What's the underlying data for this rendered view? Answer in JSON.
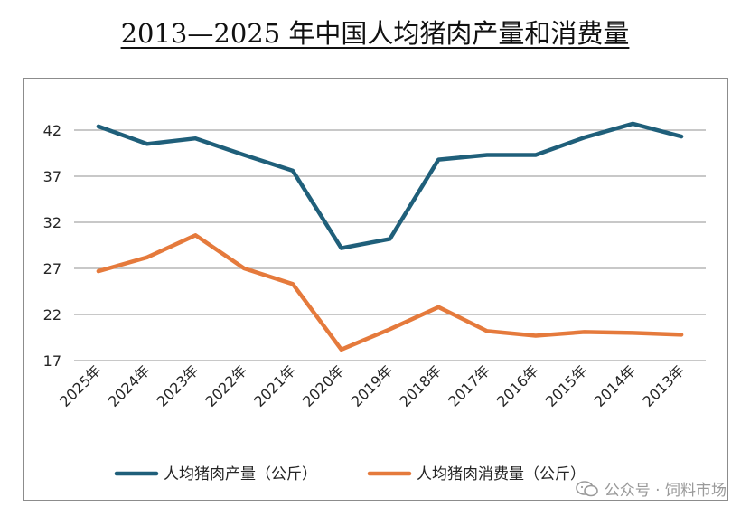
{
  "page": {
    "title": "2013—2025 年中国人均猪肉产量和消费量",
    "watermark": "公众号 · 饲料市场"
  },
  "colors": {
    "production": "#1f5f7a",
    "consumption": "#e57a3c",
    "grid": "#a6a6a6",
    "text": "#262626"
  },
  "chart_data": {
    "type": "line",
    "categories": [
      "2025年",
      "2024年",
      "2023年",
      "2022年",
      "2021年",
      "2020年",
      "2019年",
      "2018年",
      "2017年",
      "2016年",
      "2015年",
      "2014年",
      "2013年"
    ],
    "ylim": [
      17,
      42
    ],
    "yticks": [
      17,
      22,
      27,
      32,
      37,
      42
    ],
    "grid": true,
    "legend": "bottom",
    "xlabel": "",
    "ylabel": "",
    "series": [
      {
        "name": "人均猪肉产量（公斤）",
        "color_key": "production",
        "values": [
          42.4,
          40.5,
          41.1,
          39.3,
          37.6,
          29.2,
          30.2,
          38.8,
          39.3,
          39.3,
          41.2,
          42.7,
          41.3
        ]
      },
      {
        "name": "人均猪肉消费量（公斤）",
        "color_key": "consumption",
        "values": [
          26.7,
          28.2,
          30.6,
          27.0,
          25.3,
          18.2,
          20.4,
          22.8,
          20.2,
          19.7,
          20.1,
          20.0,
          19.8
        ]
      }
    ]
  }
}
